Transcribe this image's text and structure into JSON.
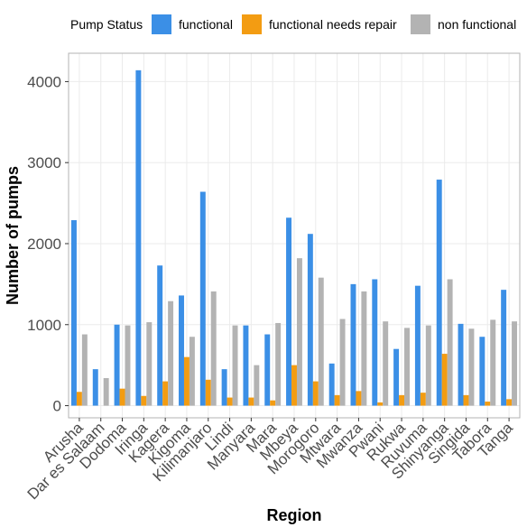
{
  "chart_data": {
    "type": "bar",
    "title": "",
    "xlabel": "Region",
    "ylabel": "Number of pumps",
    "legend_title": "Pump Status",
    "legend_position": "top",
    "grid": true,
    "ylim": [
      -150,
      4350
    ],
    "yticks": [
      0,
      1000,
      2000,
      3000,
      4000
    ],
    "categories": [
      "Arusha",
      "Dar es Salaam",
      "Dodoma",
      "Iringa",
      "Kagera",
      "Kigoma",
      "Kilimanjaro",
      "Lindi",
      "Manyara",
      "Mara",
      "Mbeya",
      "Morogoro",
      "Mtwara",
      "Mwanza",
      "Pwani",
      "Rukwa",
      "Ruvuma",
      "Shinyanga",
      "Singida",
      "Tabora",
      "Tanga"
    ],
    "series": [
      {
        "name": "functional",
        "color": "#3b8fe6",
        "values": [
          2290,
          450,
          1000,
          4140,
          1730,
          1360,
          2640,
          450,
          990,
          880,
          2320,
          2120,
          520,
          1500,
          1560,
          700,
          1480,
          2790,
          1010,
          850,
          1430
        ]
      },
      {
        "name": "functional needs repair",
        "color": "#f39c12",
        "values": [
          170,
          0,
          210,
          120,
          300,
          600,
          320,
          100,
          100,
          65,
          500,
          300,
          130,
          180,
          40,
          130,
          160,
          640,
          130,
          50,
          80
        ]
      },
      {
        "name": "non functional",
        "color": "#b3b3b3",
        "values": [
          880,
          340,
          990,
          1030,
          1290,
          850,
          1410,
          990,
          500,
          1020,
          1820,
          1580,
          1070,
          1410,
          1040,
          960,
          990,
          1560,
          950,
          1060,
          1040
        ]
      }
    ]
  }
}
